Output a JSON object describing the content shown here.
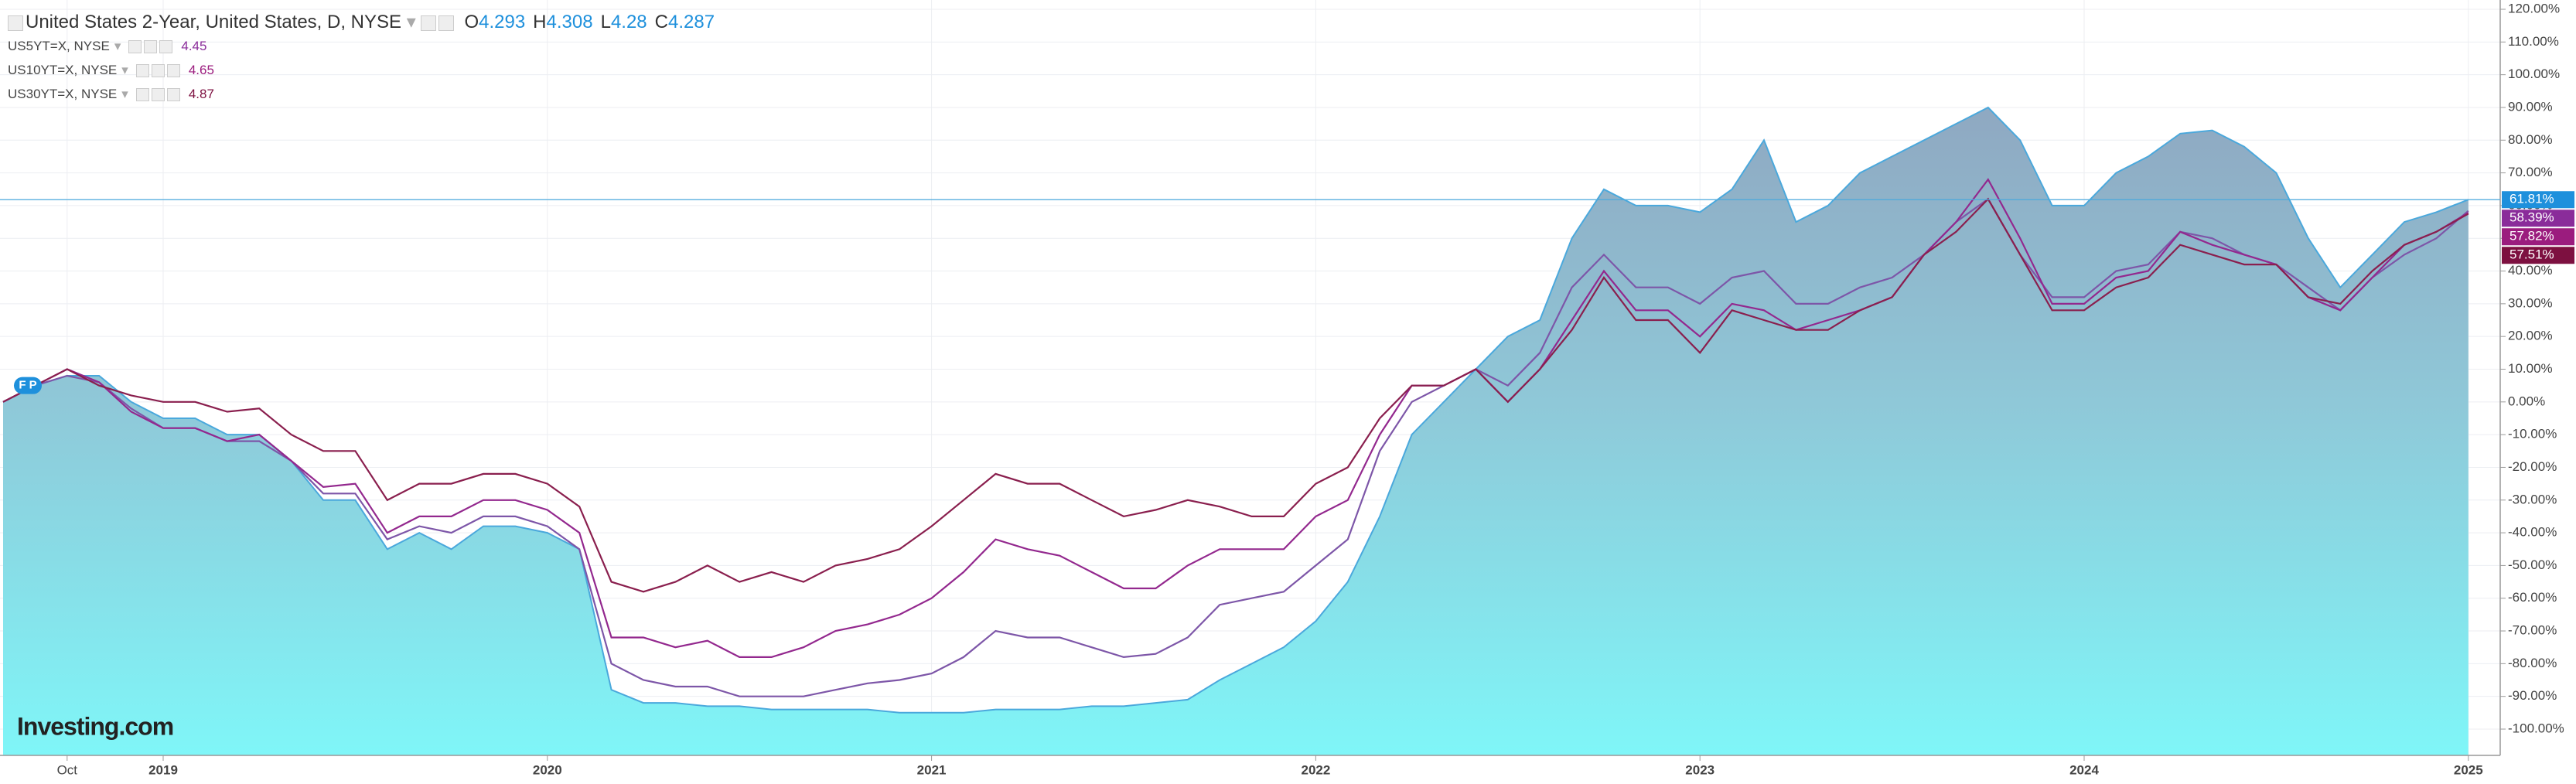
{
  "chart_data": {
    "type": "line",
    "title": "United States 2-Year, United States, D, NYSE",
    "ohlc": [
      {
        "label": "O",
        "value": 4.293
      },
      {
        "label": "H",
        "value": 4.308
      },
      {
        "label": "L",
        "value": 4.28
      },
      {
        "label": "C",
        "value": 4.287
      }
    ],
    "badge": "F P",
    "logo": "Investing.com",
    "categories": [
      null,
      null,
      "Oct",
      null,
      null,
      "2019",
      null,
      null,
      null,
      null,
      null,
      null,
      null,
      null,
      null,
      null,
      null,
      "2020",
      null,
      null,
      null,
      null,
      null,
      null,
      null,
      null,
      null,
      null,
      null,
      "2021",
      null,
      null,
      null,
      null,
      null,
      null,
      null,
      null,
      null,
      null,
      null,
      "2022",
      null,
      null,
      null,
      null,
      null,
      null,
      null,
      null,
      null,
      null,
      null,
      "2023",
      null,
      null,
      null,
      null,
      null,
      null,
      null,
      null,
      null,
      null,
      null,
      "2024",
      null,
      null,
      null,
      null,
      null,
      null,
      null,
      null,
      null,
      null,
      null,
      "2025"
    ],
    "series": [
      {
        "style": "area",
        "color": "#4aa8dc",
        "values": [
          0,
          5,
          8,
          8,
          0,
          -5,
          -5,
          -10,
          -10,
          -18,
          -30,
          -30,
          -45,
          -40,
          -45,
          -38,
          -38,
          -40,
          -45,
          -88,
          -92,
          -92,
          -93,
          -93,
          -94,
          -94,
          -94,
          -94,
          -95,
          -95,
          -95,
          -94,
          -94,
          -94,
          -93,
          -93,
          -92,
          -91,
          -85,
          -80,
          -75,
          -67,
          -55,
          -35,
          -10,
          0,
          10,
          20,
          25,
          50,
          65,
          60,
          60,
          58,
          65,
          80,
          55,
          60,
          70,
          75,
          80,
          85,
          90,
          80,
          60,
          60,
          70,
          75,
          82,
          83,
          78,
          70,
          50,
          35,
          45,
          55,
          58,
          61.81
        ],
        "last_label": {
          "value": 61.81,
          "label": "61.81%"
        }
      },
      {
        "name": "US5YT=X, NYSE",
        "legend_value": 4.45,
        "color": "#7d56a8",
        "values": [
          0,
          5,
          8,
          6,
          -2,
          -8,
          -8,
          -12,
          -12,
          -18,
          -28,
          -28,
          -42,
          -38,
          -40,
          -35,
          -35,
          -38,
          -45,
          -80,
          -85,
          -87,
          -87,
          -90,
          -90,
          -90,
          -88,
          -86,
          -85,
          -83,
          -78,
          -70,
          -72,
          -72,
          -75,
          -78,
          -77,
          -72,
          -62,
          -60,
          -58,
          -50,
          -42,
          -15,
          0,
          5,
          10,
          5,
          15,
          35,
          45,
          35,
          35,
          30,
          38,
          40,
          30,
          30,
          35,
          38,
          45,
          55,
          62,
          45,
          32,
          32,
          40,
          42,
          52,
          50,
          45,
          42,
          35,
          28,
          38,
          45,
          50,
          58.39
        ],
        "last_label": {
          "value": 58.39,
          "label": "58.39%"
        }
      },
      {
        "name": "US10YT=X, NYSE",
        "legend_value": 4.65,
        "color": "#93288e",
        "values": [
          0,
          5,
          10,
          6,
          -3,
          -8,
          -8,
          -12,
          -10,
          -18,
          -26,
          -25,
          -40,
          -35,
          -35,
          -30,
          -30,
          -33,
          -40,
          -72,
          -72,
          -75,
          -73,
          -78,
          -78,
          -75,
          -70,
          -68,
          -65,
          -60,
          -52,
          -42,
          -45,
          -47,
          -52,
          -57,
          -57,
          -50,
          -45,
          -45,
          -45,
          -35,
          -30,
          -10,
          5,
          5,
          10,
          0,
          10,
          25,
          40,
          28,
          28,
          20,
          30,
          28,
          22,
          25,
          28,
          32,
          45,
          55,
          68,
          50,
          30,
          30,
          38,
          40,
          52,
          48,
          45,
          42,
          32,
          28,
          38,
          48,
          52,
          57.82
        ],
        "last_label": {
          "value": 57.82,
          "label": "57.82%"
        }
      },
      {
        "name": "US30YT=X, NYSE",
        "legend_value": 4.87,
        "color": "#8a1f4e",
        "values": [
          0,
          5,
          10,
          5,
          2,
          0,
          0,
          -3,
          -2,
          -10,
          -15,
          -15,
          -30,
          -25,
          -25,
          -22,
          -22,
          -25,
          -32,
          -55,
          -58,
          -55,
          -50,
          -55,
          -52,
          -55,
          -50,
          -48,
          -45,
          -38,
          -30,
          -22,
          -25,
          -25,
          -30,
          -35,
          -33,
          -30,
          -32,
          -35,
          -35,
          -25,
          -20,
          -5,
          5,
          5,
          10,
          0,
          10,
          22,
          38,
          25,
          25,
          15,
          28,
          25,
          22,
          22,
          28,
          32,
          45,
          52,
          62,
          45,
          28,
          28,
          35,
          38,
          48,
          45,
          42,
          42,
          32,
          30,
          40,
          48,
          52,
          57.51
        ],
        "last_label": {
          "value": 57.51,
          "label": "57.51%"
        }
      }
    ],
    "ylim": [
      -110,
      122
    ],
    "yticks": [
      {
        "value": 120,
        "label": "120.00%"
      },
      {
        "value": 110,
        "label": "110.00%"
      },
      {
        "value": 100,
        "label": "100.00%"
      },
      {
        "value": 90,
        "label": "90.00%"
      },
      {
        "value": 80,
        "label": "80.00%"
      },
      {
        "value": 70,
        "label": "70.00%"
      },
      {
        "value": 60,
        "label": "60.00%"
      },
      {
        "value": 50,
        "label": "50.00%"
      },
      {
        "value": 40,
        "label": "40.00%"
      },
      {
        "value": 30,
        "label": "30.00%"
      },
      {
        "value": 20,
        "label": "20.00%"
      },
      {
        "value": 10,
        "label": "10.00%"
      },
      {
        "value": 0,
        "label": "0.00%"
      },
      {
        "value": -10,
        "label": "-10.00%"
      },
      {
        "value": -20,
        "label": "-20.00%"
      },
      {
        "value": -30,
        "label": "-30.00%"
      },
      {
        "value": -40,
        "label": "-40.00%"
      },
      {
        "value": -50,
        "label": "-50.00%"
      },
      {
        "value": -60,
        "label": "-60.00%"
      },
      {
        "value": -70,
        "label": "-70.00%"
      },
      {
        "value": -80,
        "label": "-80.00%"
      },
      {
        "value": -90,
        "label": "-90.00%"
      },
      {
        "value": -100,
        "label": "-100.00%"
      }
    ],
    "grid": true
  }
}
